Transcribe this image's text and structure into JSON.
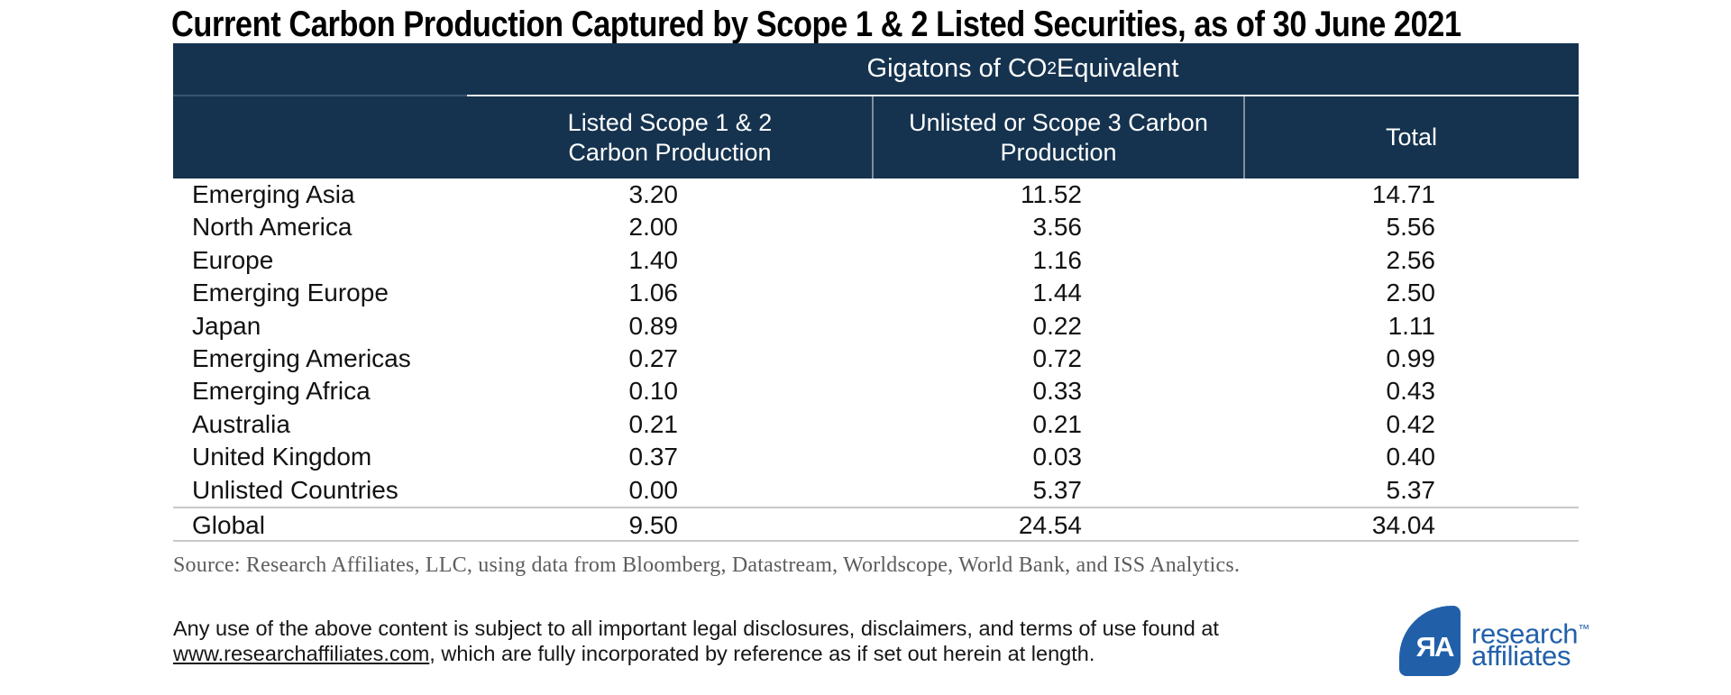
{
  "title": "Current Carbon Production Captured by Scope 1 & 2 Listed Securities, as of 30 June 2021",
  "table": {
    "unit": {
      "prefix": "Gigatons of CO",
      "sub": "2",
      "suffix": " Equivalent"
    },
    "col1_line1": "Listed Scope 1 & 2",
    "col1_line2": "Carbon Production",
    "col2_line1": "Unlisted or Scope 3 Carbon",
    "col2_line2": "Production",
    "col3": "Total",
    "rows": [
      {
        "label": "Emerging Asia",
        "listed": "3.20",
        "unlisted": "11.52",
        "total": "14.71"
      },
      {
        "label": "North America",
        "listed": "2.00",
        "unlisted": "3.56",
        "total": "5.56"
      },
      {
        "label": "Europe",
        "listed": "1.40",
        "unlisted": "1.16",
        "total": "2.56"
      },
      {
        "label": "Emerging Europe",
        "listed": "1.06",
        "unlisted": "1.44",
        "total": "2.50"
      },
      {
        "label": "Japan",
        "listed": "0.89",
        "unlisted": "0.22",
        "total": "1.11"
      },
      {
        "label": "Emerging Americas",
        "listed": "0.27",
        "unlisted": "0.72",
        "total": "0.99"
      },
      {
        "label": "Emerging Africa",
        "listed": "0.10",
        "unlisted": "0.33",
        "total": "0.43"
      },
      {
        "label": "Australia",
        "listed": "0.21",
        "unlisted": "0.21",
        "total": "0.42"
      },
      {
        "label": "United Kingdom",
        "listed": "0.37",
        "unlisted": "0.03",
        "total": "0.40"
      },
      {
        "label": "Unlisted Countries",
        "listed": "0.00",
        "unlisted": "5.37",
        "total": "5.37"
      }
    ],
    "global": {
      "label": "Global",
      "listed": "9.50",
      "unlisted": "24.54",
      "total": "34.04"
    }
  },
  "source": "Source: Research Affiliates, LLC, using data from Bloomberg, Datastream, Worldscope, World Bank, and ISS Analytics.",
  "disclaimer": {
    "line1": "Any use of the above content is subject to all important legal disclosures, disclaimers, and terms of use found at",
    "link": "www.researchaffiliates.com",
    "line2_rest": ", which are fully incorporated by reference as if set out herein at length."
  },
  "logo": {
    "monogram": "ЯA",
    "line1": "research",
    "tm": "™",
    "line2": "affiliates"
  },
  "colors": {
    "header_navy": "#15334F",
    "logo_blue": "#2160A9"
  },
  "chart_data": {
    "type": "table",
    "title": "Current Carbon Production Captured by Scope 1 & 2 Listed Securities, as of 30 June 2021",
    "unit": "Gigatons of CO2 Equivalent",
    "columns": [
      "Listed Scope 1 & 2 Carbon Production",
      "Unlisted or Scope 3 Carbon Production",
      "Total"
    ],
    "rows": [
      {
        "region": "Emerging Asia",
        "listed_scope_1_2": 3.2,
        "unlisted_or_scope_3": 11.52,
        "total": 14.71
      },
      {
        "region": "North America",
        "listed_scope_1_2": 2.0,
        "unlisted_or_scope_3": 3.56,
        "total": 5.56
      },
      {
        "region": "Europe",
        "listed_scope_1_2": 1.4,
        "unlisted_or_scope_3": 1.16,
        "total": 2.56
      },
      {
        "region": "Emerging Europe",
        "listed_scope_1_2": 1.06,
        "unlisted_or_scope_3": 1.44,
        "total": 2.5
      },
      {
        "region": "Japan",
        "listed_scope_1_2": 0.89,
        "unlisted_or_scope_3": 0.22,
        "total": 1.11
      },
      {
        "region": "Emerging Americas",
        "listed_scope_1_2": 0.27,
        "unlisted_or_scope_3": 0.72,
        "total": 0.99
      },
      {
        "region": "Emerging Africa",
        "listed_scope_1_2": 0.1,
        "unlisted_or_scope_3": 0.33,
        "total": 0.43
      },
      {
        "region": "Australia",
        "listed_scope_1_2": 0.21,
        "unlisted_or_scope_3": 0.21,
        "total": 0.42
      },
      {
        "region": "United Kingdom",
        "listed_scope_1_2": 0.37,
        "unlisted_or_scope_3": 0.03,
        "total": 0.4
      },
      {
        "region": "Unlisted Countries",
        "listed_scope_1_2": 0.0,
        "unlisted_or_scope_3": 5.37,
        "total": 5.37
      },
      {
        "region": "Global",
        "listed_scope_1_2": 9.5,
        "unlisted_or_scope_3": 24.54,
        "total": 34.04
      }
    ],
    "source": "Research Affiliates, LLC, using data from Bloomberg, Datastream, Worldscope, World Bank, and ISS Analytics"
  }
}
